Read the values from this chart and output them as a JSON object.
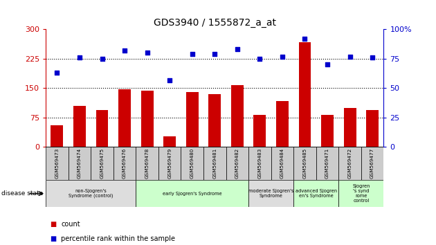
{
  "title": "GDS3940 / 1555872_a_at",
  "samples": [
    "GSM569473",
    "GSM569474",
    "GSM569475",
    "GSM569476",
    "GSM569478",
    "GSM569479",
    "GSM569480",
    "GSM569481",
    "GSM569482",
    "GSM569483",
    "GSM569484",
    "GSM569485",
    "GSM569471",
    "GSM569472",
    "GSM569477"
  ],
  "counts": [
    55,
    105,
    95,
    148,
    143,
    28,
    140,
    135,
    158,
    82,
    118,
    268,
    82,
    100,
    95
  ],
  "percentiles": [
    63,
    76,
    75,
    82,
    80,
    57,
    79,
    79,
    83,
    75,
    77,
    92,
    70,
    77,
    76
  ],
  "bar_color": "#cc0000",
  "dot_color": "#0000cc",
  "left_axis_color": "#cc0000",
  "right_axis_color": "#0000cc",
  "ylim_left": [
    0,
    300
  ],
  "ylim_right": [
    0,
    100
  ],
  "yticks_left": [
    0,
    75,
    150,
    225,
    300
  ],
  "yticks_right": [
    0,
    25,
    50,
    75,
    100
  ],
  "ytick_labels_left": [
    "0",
    "75",
    "150",
    "225",
    "300"
  ],
  "ytick_labels_right": [
    "0",
    "25",
    "50",
    "75",
    "100%"
  ],
  "hlines": [
    75,
    150,
    225
  ],
  "groups": [
    {
      "label": "non-Sjogren's\nSyndrome (control)",
      "start": 0,
      "end": 4,
      "color": "#dddddd"
    },
    {
      "label": "early Sjogren's Syndrome",
      "start": 4,
      "end": 9,
      "color": "#ccffcc"
    },
    {
      "label": "moderate Sjogren's\nSyndrome",
      "start": 9,
      "end": 11,
      "color": "#dddddd"
    },
    {
      "label": "advanced Sjogren\nen's Syndrome",
      "start": 11,
      "end": 13,
      "color": "#ccffcc"
    },
    {
      "label": "Sjogren\n's synd\nrome\ncontrol",
      "start": 13,
      "end": 15,
      "color": "#ccffcc"
    }
  ],
  "legend_count_color": "#cc0000",
  "legend_percentile_color": "#0000cc",
  "xlabel_disease_state": "disease state",
  "sample_row_color": "#cccccc",
  "bar_width": 0.55
}
